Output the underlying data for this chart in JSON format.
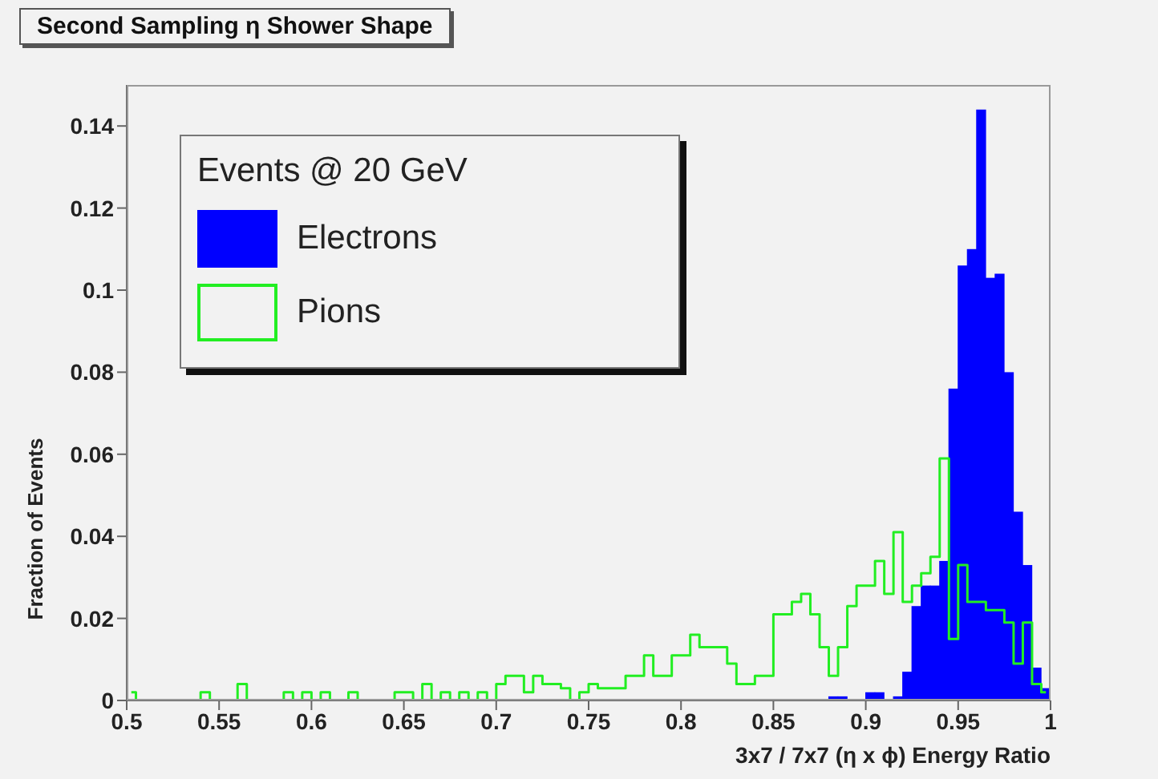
{
  "chart_data": {
    "type": "histogram",
    "title": "Second Sampling η Shower Shape",
    "xlabel": "3x7 / 7x7 (η x ϕ) Energy Ratio",
    "ylabel": "Fraction of Events",
    "legend_title": "Events @ 20 GeV",
    "legend": "top left",
    "bins": [
      0.5,
      0.505,
      0.51,
      0.515,
      0.52,
      0.525,
      0.53,
      0.535,
      0.54,
      0.545,
      0.55,
      0.555,
      0.56,
      0.565,
      0.57,
      0.575,
      0.58,
      0.585,
      0.59,
      0.595,
      0.6,
      0.605,
      0.61,
      0.615,
      0.62,
      0.625,
      0.63,
      0.635,
      0.64,
      0.645,
      0.65,
      0.655,
      0.66,
      0.665,
      0.67,
      0.675,
      0.68,
      0.685,
      0.69,
      0.695,
      0.7,
      0.705,
      0.71,
      0.715,
      0.72,
      0.725,
      0.73,
      0.735,
      0.74,
      0.745,
      0.75,
      0.755,
      0.76,
      0.765,
      0.77,
      0.775,
      0.78,
      0.785,
      0.79,
      0.795,
      0.8,
      0.805,
      0.81,
      0.815,
      0.82,
      0.825,
      0.83,
      0.835,
      0.84,
      0.845,
      0.85,
      0.855,
      0.86,
      0.865,
      0.87,
      0.875,
      0.88,
      0.885,
      0.89,
      0.895,
      0.9,
      0.905,
      0.91,
      0.915,
      0.92,
      0.925,
      0.93,
      0.935,
      0.94,
      0.945,
      0.95,
      0.955,
      0.96,
      0.965,
      0.97,
      0.975,
      0.98,
      0.985,
      0.99,
      0.995,
      1
    ],
    "series": [
      {
        "name": "Electrons",
        "color": "#0000ff",
        "values": [
          0,
          0,
          0,
          0,
          0,
          0,
          0,
          0,
          0,
          0,
          0,
          0,
          0,
          0,
          0,
          0,
          0,
          0,
          0,
          0,
          0,
          0,
          0,
          0,
          0,
          0,
          0,
          0,
          0,
          0,
          0,
          0,
          0,
          0,
          0,
          0,
          0,
          0,
          0,
          0,
          0,
          0,
          0,
          0,
          0,
          0,
          0,
          0,
          0,
          0,
          0,
          0,
          0,
          0,
          0,
          0,
          0,
          0,
          0,
          0,
          0,
          0,
          0,
          0,
          0,
          0,
          0,
          0,
          0,
          0,
          0,
          0,
          0,
          0,
          0,
          0,
          0.001,
          0.001,
          0,
          0,
          0.002,
          0.002,
          0,
          0.001,
          0.007,
          0.023,
          0.028,
          0.028,
          0.034,
          0.076,
          0.106,
          0.11,
          0.144,
          0.103,
          0.104,
          0.08,
          0.046,
          0.033,
          0.008,
          0.003
        ]
      },
      {
        "name": "Pions",
        "type": "step",
        "color": "#22ee22",
        "x": [
          0.5025,
          0.5075,
          0.5125,
          0.5175,
          0.5225,
          0.5275,
          0.5325,
          0.5375,
          0.5425,
          0.5475,
          0.5525,
          0.5575,
          0.5625,
          0.5675,
          0.5725,
          0.5775,
          0.5825,
          0.5875,
          0.5925,
          0.5975,
          0.6025,
          0.6075,
          0.6125,
          0.6175,
          0.6225,
          0.6275,
          0.6325,
          0.6375,
          0.6425,
          0.6475,
          0.6525,
          0.6575,
          0.6625,
          0.6675,
          0.6725,
          0.6775,
          0.6825,
          0.6875,
          0.6925,
          0.6975,
          0.7025,
          0.7075,
          0.7125,
          0.7175,
          0.7225,
          0.7275,
          0.7325,
          0.7375,
          0.7425,
          0.7475,
          0.7525,
          0.7575,
          0.7625,
          0.7675,
          0.7725,
          0.7775,
          0.7825,
          0.7875,
          0.7925,
          0.7975,
          0.8025,
          0.8075,
          0.8125,
          0.8175,
          0.8225,
          0.8275,
          0.8325,
          0.8375,
          0.8425,
          0.8475,
          0.8525,
          0.8575,
          0.8625,
          0.8675,
          0.8725,
          0.8775,
          0.8825,
          0.8875,
          0.8925,
          0.8975,
          0.9025,
          0.9075,
          0.9125,
          0.9175,
          0.9225,
          0.9275,
          0.9325,
          0.9375,
          0.9425,
          0.9475,
          0.9525,
          0.9575,
          0.9625,
          0.9675,
          0.9725,
          0.9775,
          0.9825,
          0.9875,
          0.9925,
          0.9975
        ],
        "values": [
          0.002,
          0,
          0,
          0,
          0,
          0,
          0,
          0,
          0.002,
          0,
          0,
          0,
          0.004,
          0,
          0,
          0,
          0,
          0.002,
          0,
          0.002,
          0,
          0.002,
          0,
          0,
          0.002,
          0,
          0,
          0,
          0,
          0.002,
          0.002,
          0,
          0.004,
          0,
          0.002,
          0,
          0.002,
          0,
          0.002,
          0,
          0.004,
          0.006,
          0.006,
          0.002,
          0.006,
          0.004,
          0.004,
          0.003,
          0,
          0.002,
          0.004,
          0.003,
          0.003,
          0.003,
          0.006,
          0.006,
          0.011,
          0.006,
          0.006,
          0.011,
          0.011,
          0.016,
          0.013,
          0.013,
          0.013,
          0.009,
          0.004,
          0.004,
          0.006,
          0.006,
          0.021,
          0.021,
          0.024,
          0.026,
          0.021,
          0.013,
          0.006,
          0.013,
          0.023,
          0.028,
          0.028,
          0.034,
          0.026,
          0.041,
          0.024,
          0.028,
          0.031,
          0.035,
          0.059,
          0.015,
          0.033,
          0.024,
          0.024,
          0.022,
          0.022,
          0.019,
          0.009,
          0.019,
          0.004,
          0.002
        ]
      }
    ],
    "xlim": [
      0.5,
      1
    ],
    "xticks": [
      0.5,
      0.55,
      0.6,
      0.65,
      0.7,
      0.75,
      0.8,
      0.85,
      0.9,
      0.95,
      1
    ],
    "ylim": [
      0,
      0.15
    ],
    "yticks": [
      0,
      0.02,
      0.04,
      0.06,
      0.08,
      0.1,
      0.12,
      0.14
    ]
  }
}
